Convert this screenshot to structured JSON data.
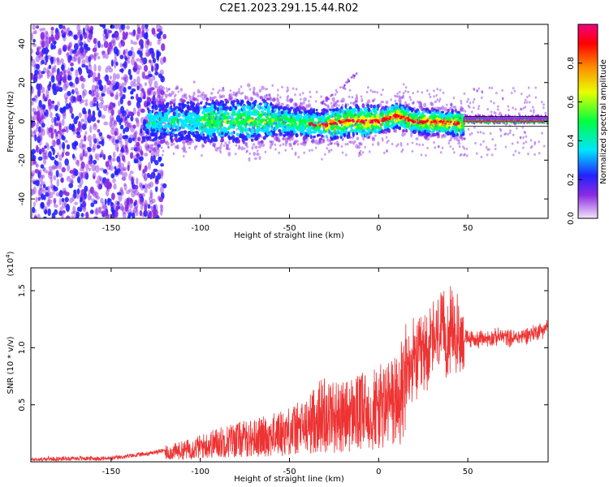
{
  "title": "C2E1.2023.291.15.44.R02",
  "chart_data": [
    {
      "type": "heatmap",
      "xlabel": "Height of straight line (km)",
      "ylabel": "Frequency (Hz)",
      "xlim": [
        -195,
        95
      ],
      "ylim": [
        -50,
        50
      ],
      "xticks": [
        -150,
        -100,
        -50,
        0,
        50
      ],
      "yticks": [
        -40,
        -20,
        0,
        20,
        40
      ],
      "colorbar": {
        "label": "Normalized spectral amplitude",
        "range": [
          0,
          1
        ],
        "ticks": [
          0.0,
          0.2,
          0.4,
          0.6,
          0.8
        ],
        "tick_labels": [
          "0.0",
          "0.2",
          "0.4",
          "0.6",
          "0.8"
        ],
        "colors": [
          "#f4e4fb",
          "#8a2be2",
          "#2222ff",
          "#00e5ff",
          "#00ff40",
          "#e8ff00",
          "#ff8c00",
          "#ff0000",
          "#f20080"
        ]
      },
      "band_center_hz": [
        {
          "x": -160,
          "y": 0
        },
        {
          "x": -100,
          "y": 0
        },
        {
          "x": -60,
          "y": 0.5
        },
        {
          "x": -30,
          "y": -2
        },
        {
          "x": -20,
          "y": 0
        },
        {
          "x": 0,
          "y": 0
        },
        {
          "x": 10,
          "y": 3
        },
        {
          "x": 20,
          "y": 0
        },
        {
          "x": 45,
          "y": -1
        },
        {
          "x": 95,
          "y": 0
        }
      ]
    },
    {
      "type": "line",
      "xlabel": "Height of straight line (km)",
      "ylabel": "SNR (10 * v/v)",
      "multiplier": "(x10",
      "multiplier_exponent": "4",
      "multiplier_close": ")",
      "xlim": [
        -195,
        95
      ],
      "ylim": [
        0,
        17000
      ],
      "xticks": [
        -150,
        -100,
        -50,
        0,
        50
      ],
      "yticks": [
        5000,
        10000,
        15000
      ],
      "ytick_labels": [
        "0.5",
        "1.0",
        "1.5"
      ],
      "color": "#ee3333",
      "series": [
        {
          "x": [
            -195,
            -170,
            -150,
            -130,
            -120,
            -110,
            -100,
            -90,
            -80,
            -70,
            -60,
            -50,
            -40,
            -35,
            -30,
            -25,
            -20,
            -15,
            -10,
            -5,
            0,
            5,
            10,
            15,
            20,
            25,
            30,
            35,
            40,
            45,
            50,
            55,
            60,
            65,
            70,
            75,
            80,
            85,
            90,
            95
          ],
          "values": [
            200,
            300,
            300,
            700,
            1000,
            1300,
            1700,
            2200,
            2500,
            2700,
            3000,
            3500,
            4000,
            5000,
            5500,
            5200,
            5000,
            5400,
            5500,
            6000,
            6000,
            6500,
            7000,
            8000,
            8500,
            9500,
            10500,
            11000,
            11300,
            11000,
            10800,
            10700,
            10800,
            10900,
            11000,
            10800,
            11000,
            11200,
            11500,
            11800
          ]
        }
      ]
    }
  ]
}
